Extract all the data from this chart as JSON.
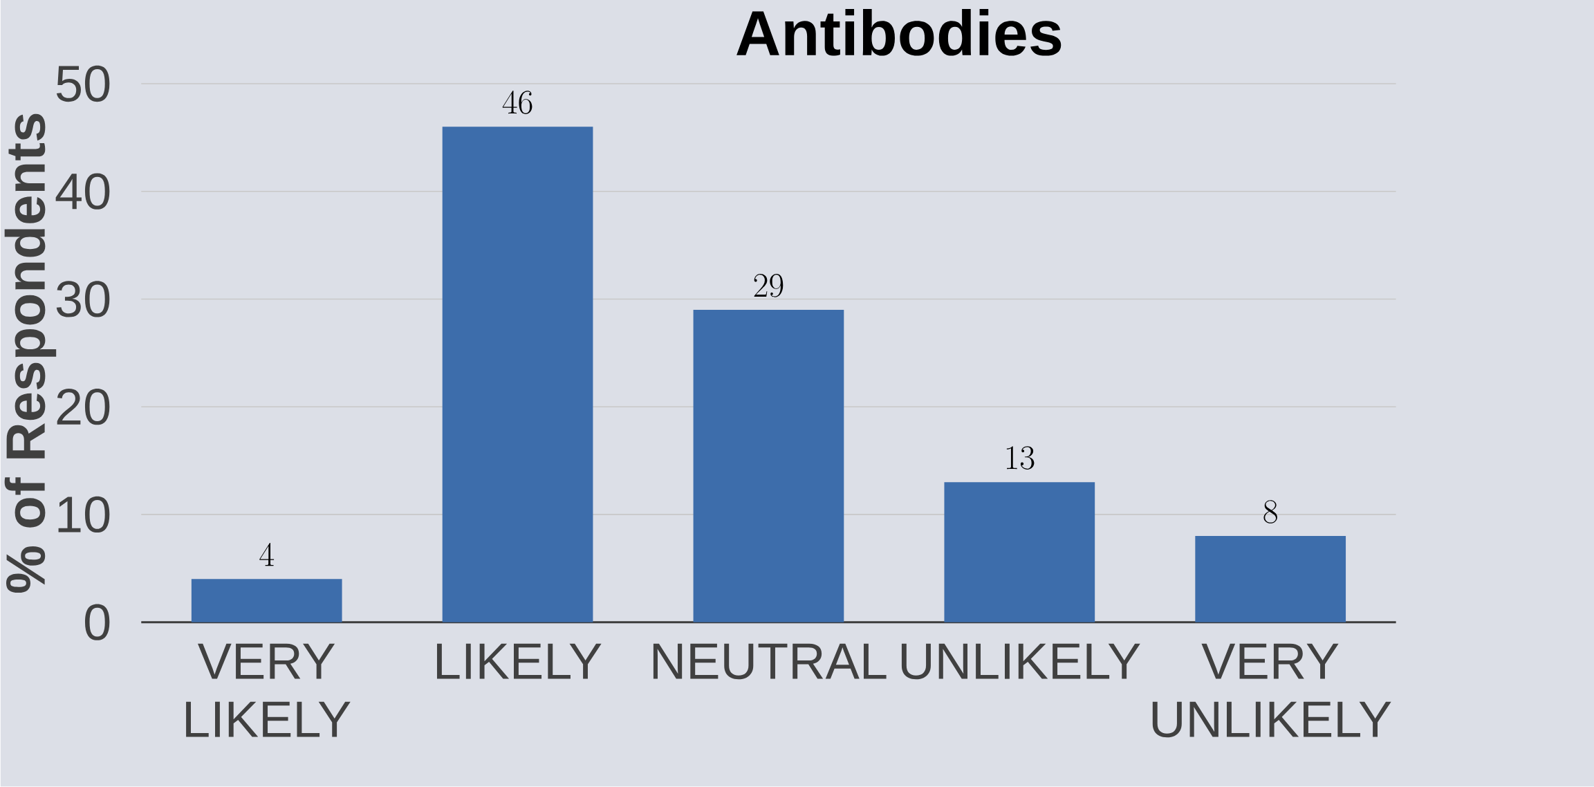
{
  "chart_data": {
    "type": "bar",
    "title": "Antibodies",
    "ylabel": "% of Respondents",
    "categories": [
      "VERY LIKELY",
      "LIKELY",
      "NEUTRAL",
      "UNLIKELY",
      "VERY UNLIKELY"
    ],
    "values": [
      4,
      46,
      29,
      13,
      8
    ],
    "color": "#3d6dab",
    "ylim": [
      0,
      50
    ],
    "yticks": [
      0,
      10,
      20,
      30,
      40,
      50
    ],
    "grid": "y",
    "data_labels": true
  }
}
